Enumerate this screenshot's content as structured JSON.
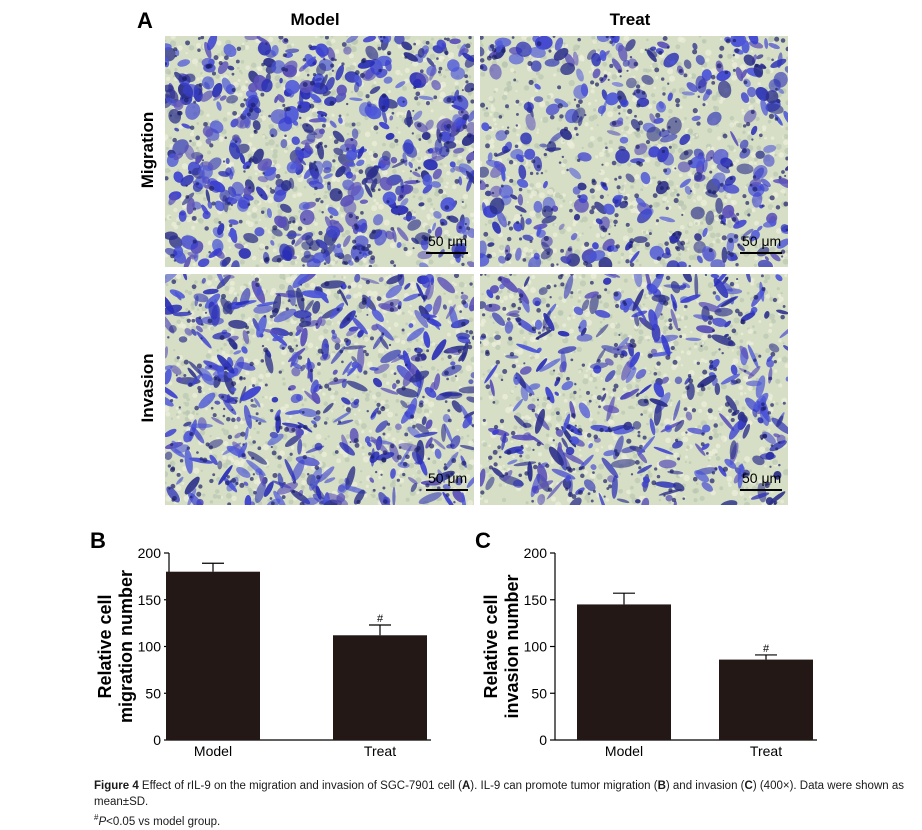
{
  "panel_a": {
    "letter": "A",
    "columns": [
      "Model",
      "Treat"
    ],
    "rows": [
      "Migration",
      "Invasion"
    ],
    "scale_label": "50 μm"
  },
  "chart_data": [
    {
      "letter": "B",
      "type": "bar",
      "categories": [
        "Model",
        "Treat"
      ],
      "values": [
        180,
        112
      ],
      "errors": [
        9,
        11
      ],
      "annotations": [
        "",
        "#"
      ],
      "ylabel_line1": "Relative cell",
      "ylabel_line2": "migration number",
      "ylim": [
        0,
        200
      ],
      "yticks": [
        0,
        50,
        100,
        150,
        200
      ],
      "bar_color": "#231815"
    },
    {
      "letter": "C",
      "type": "bar",
      "categories": [
        "Model",
        "Treat"
      ],
      "values": [
        145,
        86
      ],
      "errors": [
        12,
        5
      ],
      "annotations": [
        "",
        "#"
      ],
      "ylabel_line1": "Relative cell",
      "ylabel_line2": "invasion number",
      "ylim": [
        0,
        200
      ],
      "yticks": [
        0,
        50,
        100,
        150,
        200
      ],
      "bar_color": "#231815"
    }
  ],
  "caption": {
    "figure_label": "Figure 4",
    "text1": " Effect of rIL-9 on the migration and invasion of SGC-7901 cell (",
    "ref_a": "A",
    "text2": "). IL-9 can promote tumor migration (",
    "ref_b": "B",
    "text3": ") and invasion (",
    "ref_c": "C",
    "text4": ") (400×). Data were shown as mean±SD.",
    "line2_sup": "#",
    "line2_p": "P",
    "line2_rest": "<0.05 vs model group."
  }
}
